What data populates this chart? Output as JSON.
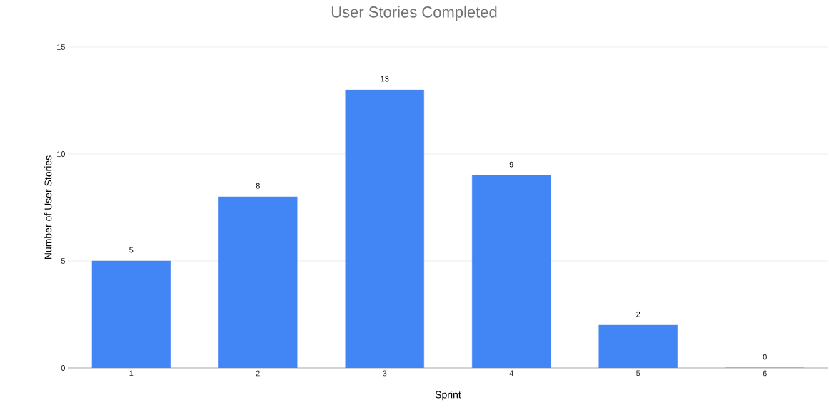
{
  "chart_data": {
    "type": "bar",
    "title": "User Stories Completed",
    "xlabel": "Sprint",
    "ylabel": "Number of User Stories",
    "categories": [
      "1",
      "2",
      "3",
      "4",
      "5",
      "6"
    ],
    "values": [
      5,
      8,
      13,
      9,
      2,
      0
    ],
    "color": "#4285f4",
    "ylim": [
      0,
      15
    ],
    "yticks": [
      0,
      5,
      10,
      15
    ],
    "grid": "y",
    "data_labels": true
  }
}
